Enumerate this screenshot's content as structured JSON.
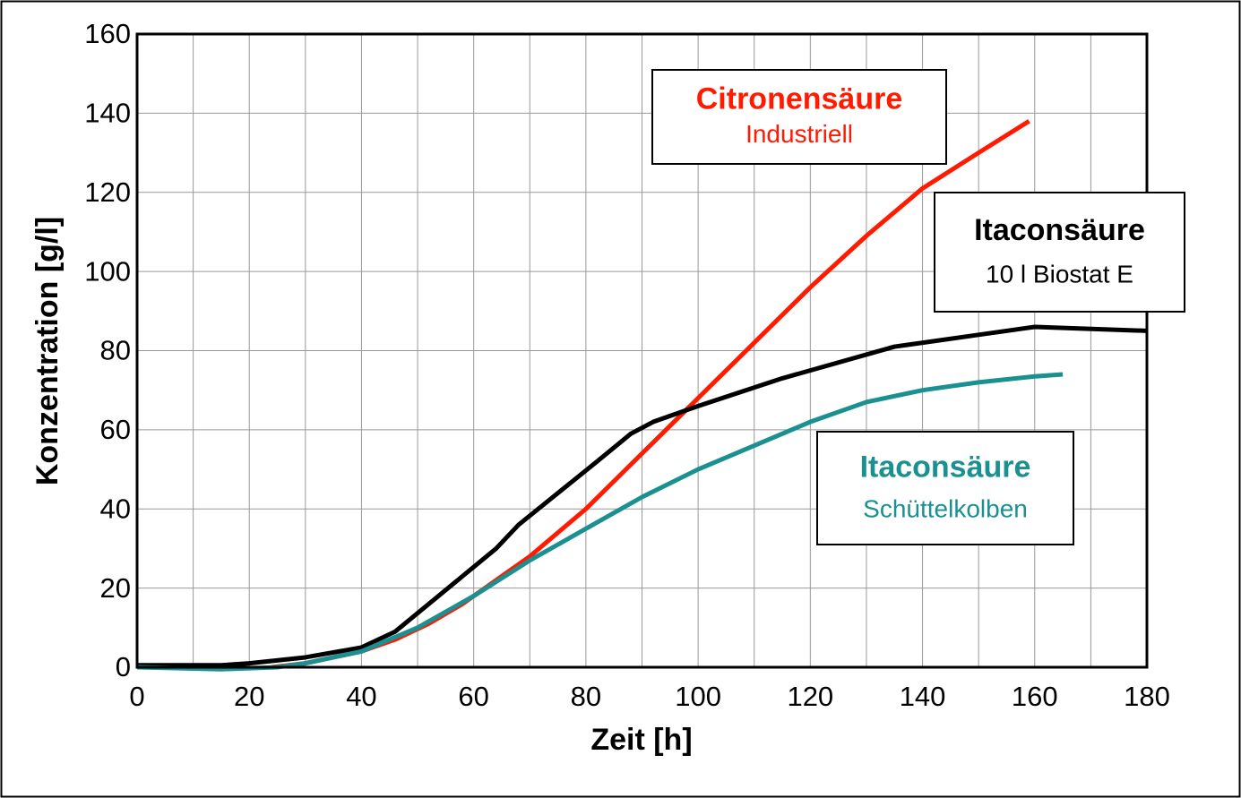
{
  "chart_data": {
    "type": "line",
    "xlabel": "Zeit [h]",
    "ylabel": "Konzentration [g/l]",
    "xlim": [
      0,
      180
    ],
    "xticks": [
      0,
      20,
      40,
      60,
      80,
      100,
      120,
      140,
      160,
      180
    ],
    "ylim": [
      0,
      160
    ],
    "yticks": [
      0,
      20,
      40,
      60,
      80,
      100,
      120,
      140,
      160
    ],
    "grid": true,
    "series": [
      {
        "name": "Citronensäure",
        "subtitle": "Industriell",
        "color": "#ff1a00",
        "x": [
          24,
          30,
          40,
          46,
          52,
          58,
          64,
          70,
          80,
          90,
          100,
          110,
          120,
          130,
          140,
          150,
          159
        ],
        "values": [
          0,
          1,
          4,
          7,
          11,
          16,
          22,
          28,
          40,
          54,
          68,
          82,
          96,
          109,
          121,
          130,
          138
        ]
      },
      {
        "name": "Itaconsäure",
        "subtitle": "10 l Biostat E",
        "color": "#000000",
        "x": [
          0,
          15,
          20,
          30,
          40,
          46,
          52,
          58,
          64,
          68,
          75,
          82,
          88,
          92,
          100,
          115,
          135,
          150,
          160,
          180
        ],
        "values": [
          0.5,
          0.5,
          1,
          2.5,
          5,
          9,
          16,
          23,
          30,
          36,
          44,
          52,
          59,
          62,
          66,
          73,
          81,
          84,
          86,
          85
        ]
      },
      {
        "name": "Itaconsäure",
        "subtitle": "Schüttelkolben",
        "color": "#1a9090",
        "x": [
          0,
          15,
          25,
          30,
          40,
          50,
          60,
          70,
          80,
          90,
          100,
          110,
          120,
          130,
          140,
          150,
          160,
          165
        ],
        "values": [
          0,
          -0.5,
          0,
          1,
          4,
          10,
          18,
          27,
          35,
          43,
          50,
          56,
          62,
          67,
          70,
          72,
          73.5,
          74
        ]
      }
    ]
  }
}
